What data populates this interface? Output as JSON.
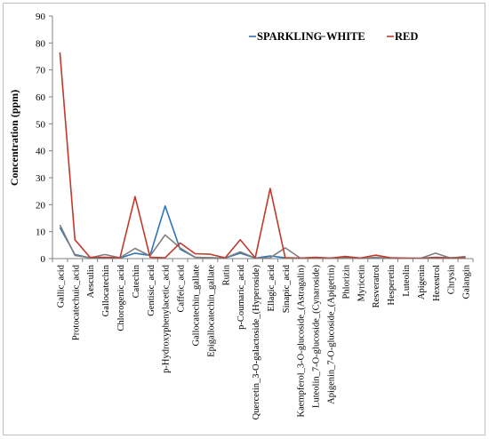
{
  "chart_data": {
    "type": "line",
    "title": "",
    "xlabel": "",
    "ylabel": "Concentration (ppm)",
    "ylim": [
      0,
      90
    ],
    "yticks": [
      0,
      10,
      20,
      30,
      40,
      50,
      60,
      70,
      80,
      90
    ],
    "grid": false,
    "legend_position": "top-right",
    "categories": [
      "Gallic_acid",
      "Protocatechuic_acid",
      "Aesculin",
      "Gallocatechin",
      "Chlorogenic_acid",
      "Catechin",
      "Gentisic_acid",
      "p-Hydroxyphenylacetic_acid",
      "Caffeic_acid",
      "Gallocatechin_gallate",
      "Epigallocatechin_gallate",
      "Rutin",
      "p-Coumaric_acid",
      "Quercetin_3-O-galactoside_(Hyperoside)",
      "Ellagic_acid",
      "Sinapic_acid",
      "Kaempferol_3-O-glucoside_(Astragalin)",
      "Luteolin_7-O-glucoside_(Cynaroside)",
      "Apigenin_7-O-glucoside_(Apigetrin)",
      "Phlorizin",
      "Myricetin",
      "Resveratrol",
      "Hesperetin",
      "Luteolin",
      "Apigenin",
      "Hexestrol",
      "Chrysin",
      "Galangin"
    ],
    "series": [
      {
        "name": "SPARKLING",
        "color": "#2e75b6",
        "values": [
          11.5,
          1.5,
          0.3,
          0.2,
          0.2,
          2.0,
          1.2,
          19.5,
          3.5,
          0.5,
          0.3,
          0.2,
          2.0,
          0.2,
          1.0,
          0.3,
          0.1,
          0.1,
          0.1,
          0.3,
          0.1,
          0.2,
          0.1,
          0.1,
          0.1,
          0.5,
          0.3,
          0.5
        ]
      },
      {
        "name": "WHITE",
        "color": "#7f7f7f",
        "values": [
          12.5,
          1.2,
          0.3,
          1.5,
          0.3,
          3.8,
          1.0,
          8.8,
          4.0,
          0.5,
          0.3,
          0.2,
          2.5,
          0.2,
          0.3,
          4.0,
          0.2,
          0.1,
          0.1,
          0.2,
          0.1,
          0.5,
          0.1,
          0.1,
          0.1,
          2.0,
          0.2,
          0.8
        ]
      },
      {
        "name": "RED",
        "color": "#c0392b",
        "values": [
          76.5,
          7.0,
          0.5,
          0.5,
          0.3,
          23.0,
          0.5,
          0.3,
          5.8,
          1.8,
          1.6,
          0.3,
          7.0,
          0.3,
          26.0,
          0.3,
          0.2,
          0.5,
          0.2,
          0.8,
          0.2,
          1.3,
          0.3,
          0.2,
          0.1,
          0.4,
          0.2,
          0.3
        ]
      }
    ]
  }
}
